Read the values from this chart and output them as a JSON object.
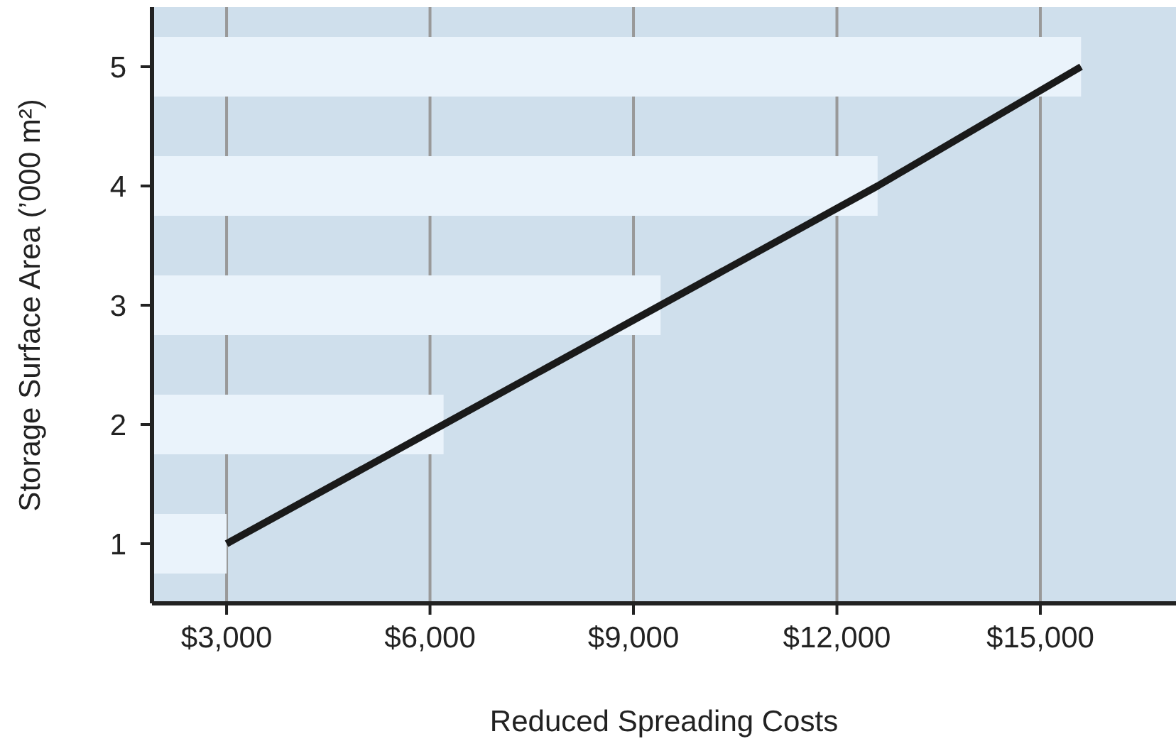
{
  "chart_data": {
    "type": "bar",
    "orientation": "horizontal",
    "xlabel": "Reduced Spreading Costs",
    "ylabel": "Storage Surface Area (’000 m²)",
    "categories": [
      "5",
      "4",
      "3",
      "2",
      "1"
    ],
    "xlim": [
      1900,
      17000
    ],
    "xticks": [
      {
        "value": 3000,
        "label": "$3,000"
      },
      {
        "value": 6000,
        "label": "$6,000"
      },
      {
        "value": 9000,
        "label": "$9,000"
      },
      {
        "value": 12000,
        "label": "$12,000"
      },
      {
        "value": 15000,
        "label": "$15,000"
      }
    ],
    "grid": "x",
    "series": [
      {
        "color": "#eaf3fb",
        "values": [
          15600,
          12600,
          9400,
          6200,
          3000
        ]
      },
      {
        "type": "line",
        "color": "#1a1a1a",
        "values": [
          15600,
          12600,
          9400,
          6200,
          3000
        ]
      }
    ]
  }
}
